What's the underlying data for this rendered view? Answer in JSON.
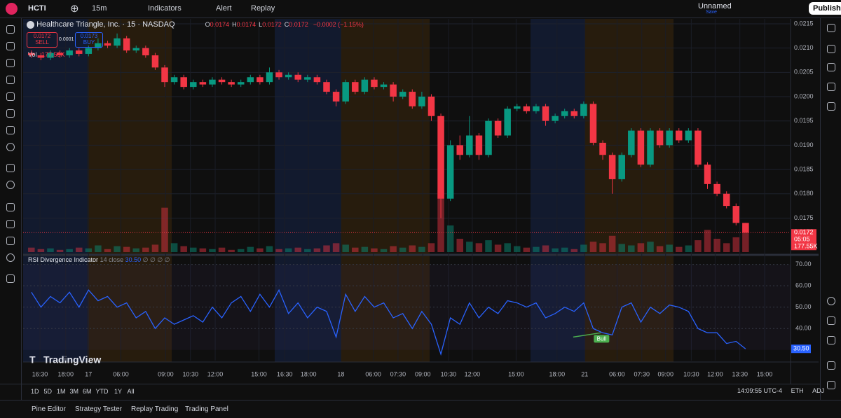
{
  "toolbar": {
    "symbol": "HCTI",
    "interval": "15m",
    "indicators": "Indicators",
    "alert": "Alert",
    "replay": "Replay",
    "layout_name": "Unnamed",
    "save": "Save",
    "publish": "Publish"
  },
  "legend": {
    "title": "Healthcare Triangle, Inc. · 15 · NASDAQ",
    "ohlc": [
      {
        "key": "O",
        "value": "0.0174"
      },
      {
        "key": "H",
        "value": "0.0174"
      },
      {
        "key": "L",
        "value": "0.0172"
      },
      {
        "key": "C",
        "value": "0.0172"
      }
    ],
    "change": "−0.0002 (−1.15%)",
    "sell_price": "0.0172",
    "sell": "SELL",
    "spread": "0.0001",
    "buy_price": "0.0173",
    "buy": "BUY",
    "vol": "Vol",
    "vol_value": "177.55K"
  },
  "chart_data": {
    "type": "candlestick",
    "up_color": "#089981",
    "down_color": "#f23645",
    "open": [
      0.0209,
      0.02085,
      0.0208,
      0.0209,
      0.02085,
      0.02095,
      0.02088,
      0.021,
      0.0211,
      0.02105,
      0.0212,
      0.02095,
      0.021,
      0.02085,
      0.0206,
      0.0203,
      0.0204,
      0.0202,
      0.0203,
      0.02025,
      0.02035,
      0.0203,
      0.02025,
      0.0203,
      0.0204,
      0.0203,
      0.0205,
      0.0204,
      0.02045,
      0.02035,
      0.0204,
      0.0203,
      0.0201,
      0.0199,
      0.0203,
      0.0201,
      0.02035,
      0.0202,
      0.02025,
      0.02,
      0.0201,
      0.0198,
      0.02,
      0.0196,
      0.0179,
      0.019,
      0.0188,
      0.0192,
      0.0188,
      0.0195,
      0.0192,
      0.01975,
      0.0198,
      0.0197,
      0.0198,
      0.0195,
      0.0196,
      0.0197,
      0.0196,
      0.01985,
      0.01905,
      0.0188,
      0.0183,
      0.0188,
      0.0193,
      0.0186,
      0.0193,
      0.019,
      0.0193,
      0.0191,
      0.0193,
      0.0186,
      0.0182,
      0.018,
      0.01775,
      0.0174
    ],
    "high": [
      0.02095,
      0.0209,
      0.02095,
      0.02095,
      0.021,
      0.021,
      0.02105,
      0.0212,
      0.02115,
      0.0213,
      0.02125,
      0.02105,
      0.02105,
      0.0209,
      0.02065,
      0.02045,
      0.02045,
      0.02035,
      0.02035,
      0.0204,
      0.0204,
      0.02035,
      0.02035,
      0.02045,
      0.02045,
      0.0206,
      0.02055,
      0.0205,
      0.0205,
      0.02045,
      0.02045,
      0.02035,
      0.02015,
      0.02035,
      0.02035,
      0.0204,
      0.0204,
      0.0203,
      0.0203,
      0.02015,
      0.02015,
      0.0201,
      0.02005,
      0.01965,
      0.0191,
      0.0192,
      0.0196,
      0.01925,
      0.01955,
      0.01955,
      0.0198,
      0.01985,
      0.01985,
      0.01985,
      0.01985,
      0.01965,
      0.01975,
      0.01975,
      0.0199,
      0.0199,
      0.0191,
      0.01885,
      0.01885,
      0.01935,
      0.01935,
      0.01935,
      0.01935,
      0.01935,
      0.01935,
      0.01935,
      0.01935,
      0.01865,
      0.01825,
      0.01805,
      0.0178,
      0.0174
    ],
    "low": [
      0.0208,
      0.02075,
      0.02075,
      0.0208,
      0.0208,
      0.02083,
      0.02083,
      0.02095,
      0.021,
      0.021,
      0.0209,
      0.0209,
      0.0208,
      0.02055,
      0.0202,
      0.02025,
      0.02015,
      0.02015,
      0.0202,
      0.0202,
      0.02025,
      0.0202,
      0.0202,
      0.02025,
      0.02025,
      0.02025,
      0.02035,
      0.02035,
      0.0203,
      0.0203,
      0.02025,
      0.02005,
      0.0198,
      0.01985,
      0.02005,
      0.02005,
      0.02015,
      0.02015,
      0.0199,
      0.01995,
      0.01975,
      0.01975,
      0.0195,
      0.0175,
      0.01785,
      0.0187,
      0.01875,
      0.0187,
      0.01875,
      0.01915,
      0.01915,
      0.0197,
      0.01965,
      0.01965,
      0.0194,
      0.01945,
      0.01955,
      0.01955,
      0.01955,
      0.019,
      0.0187,
      0.018,
      0.01825,
      0.01875,
      0.01855,
      0.01855,
      0.01895,
      0.01895,
      0.01905,
      0.01905,
      0.01855,
      0.0181,
      0.01795,
      0.0177,
      0.01735,
      0.0172
    ],
    "close": [
      0.02085,
      0.0208,
      0.0209,
      0.02085,
      0.02095,
      0.02088,
      0.021,
      0.0211,
      0.02105,
      0.0212,
      0.02095,
      0.021,
      0.02085,
      0.0206,
      0.0203,
      0.0204,
      0.0202,
      0.0203,
      0.02025,
      0.02035,
      0.0203,
      0.02025,
      0.0203,
      0.0204,
      0.0203,
      0.0205,
      0.0204,
      0.02045,
      0.02035,
      0.0204,
      0.0203,
      0.0201,
      0.0199,
      0.0203,
      0.0201,
      0.02035,
      0.0202,
      0.02025,
      0.02,
      0.0201,
      0.0198,
      0.02,
      0.0196,
      0.0179,
      0.019,
      0.0188,
      0.0192,
      0.0188,
      0.0195,
      0.0192,
      0.01975,
      0.0198,
      0.0197,
      0.0198,
      0.0195,
      0.0196,
      0.0197,
      0.0196,
      0.01985,
      0.01905,
      0.0188,
      0.0183,
      0.0188,
      0.0193,
      0.0186,
      0.0193,
      0.019,
      0.0193,
      0.0191,
      0.0193,
      0.0186,
      0.0182,
      0.018,
      0.01775,
      0.0174,
      0.0172
    ],
    "volume": [
      30000,
      20000,
      25000,
      15000,
      20000,
      30000,
      25000,
      45000,
      20000,
      40000,
      35000,
      25000,
      30000,
      50000,
      300000,
      60000,
      40000,
      30000,
      25000,
      20000,
      30000,
      15000,
      20000,
      35000,
      25000,
      40000,
      20000,
      25000,
      30000,
      20000,
      25000,
      45000,
      60000,
      50000,
      30000,
      35000,
      25000,
      20000,
      40000,
      30000,
      45000,
      35000,
      60000,
      420000,
      180000,
      90000,
      70000,
      60000,
      80000,
      50000,
      60000,
      40000,
      30000,
      35000,
      45000,
      25000,
      30000,
      20000,
      50000,
      70000,
      60000,
      110000,
      55000,
      45000,
      60000,
      70000,
      40000,
      50000,
      35000,
      45000,
      80000,
      150000,
      90000,
      60000,
      100000,
      177550
    ],
    "volume_max": 450000,
    "price_tag": "0.0172",
    "countdown": "05:05",
    "volume_tag": "177.55K",
    "ylim": [
      0.0168,
      0.0216
    ],
    "yticks": [
      0.0215,
      {
        "value": 0.021,
        "label": "0.0210"
      },
      0.0205,
      {
        "value": 0.02,
        "label": "0.0200"
      },
      0.0195,
      {
        "value": 0.019,
        "label": "0.0190"
      },
      0.0185,
      {
        "value": 0.018,
        "label": "0.0180"
      },
      0.0175
    ],
    "xlim": [
      0,
      80
    ],
    "xticks": [
      {
        "value": 1.4,
        "label": "16:30"
      },
      {
        "value": 4.1,
        "label": "18:00"
      },
      {
        "value": 6.5,
        "label": "17"
      },
      {
        "value": 9.9,
        "label": "06:00"
      },
      {
        "value": 14.6,
        "label": "09:00"
      },
      {
        "value": 17.2,
        "label": "10:30"
      },
      {
        "value": 19.8,
        "label": "12:00"
      },
      {
        "value": 24.4,
        "label": "15:00"
      },
      {
        "value": 27.1,
        "label": "16:30"
      },
      {
        "value": 29.6,
        "label": "18:00"
      },
      {
        "value": 33,
        "label": "18"
      },
      {
        "value": 36.4,
        "label": "06:00"
      },
      {
        "value": 39,
        "label": "07:30"
      },
      {
        "value": 41.6,
        "label": "09:00"
      },
      {
        "value": 44.3,
        "label": "10:30"
      },
      {
        "value": 46.8,
        "label": "12:00"
      },
      {
        "value": 51.4,
        "label": "15:00"
      },
      {
        "value": 55.7,
        "label": "18:00"
      },
      {
        "value": 58.6,
        "label": "21"
      },
      {
        "value": 62,
        "label": "06:00"
      },
      {
        "value": 64.6,
        "label": "07:30"
      },
      {
        "value": 67.1,
        "label": "09:00"
      },
      {
        "value": 69.8,
        "label": "10:30"
      },
      {
        "value": 72.3,
        "label": "12:00"
      },
      {
        "value": 74.9,
        "label": "13:30"
      },
      {
        "value": 77.5,
        "label": "15:00"
      }
    ],
    "rsi": {
      "name": "RSI Divergence Indicator",
      "params": "14 close",
      "value_label": "30.50",
      "extras": "∅ ∅ ∅ ∅",
      "color": "#2962ff",
      "values": [
        57,
        50,
        55,
        52,
        57,
        50,
        58,
        53,
        55,
        50,
        52,
        45,
        48,
        40,
        45,
        42,
        44,
        46,
        43,
        50,
        45,
        52,
        55,
        48,
        56,
        50,
        58,
        47,
        52,
        45,
        50,
        48,
        36,
        56,
        48,
        55,
        50,
        52,
        45,
        47,
        40,
        48,
        42,
        28,
        45,
        42,
        52,
        45,
        50,
        47,
        53,
        52,
        50,
        52,
        45,
        47,
        50,
        48,
        52,
        40,
        38,
        37,
        50,
        52,
        43,
        50,
        47,
        51,
        50,
        48,
        40,
        38,
        38,
        33,
        34,
        30.5
      ],
      "ylim": [
        25,
        72.5
      ],
      "yticks": [
        {
          "value": 70,
          "label": "70.00"
        },
        {
          "value": 60,
          "label": "60.00"
        },
        {
          "value": 50,
          "label": "50.00"
        },
        {
          "value": 40,
          "label": "40.00"
        }
      ],
      "divergence": {
        "label": "Bull",
        "color": "#4caf50",
        "from": [
          57.4,
          36
        ],
        "to": [
          60.3,
          38
        ]
      }
    }
  },
  "ranges": [
    "1D",
    "5D",
    "1M",
    "3M",
    "6M",
    "YTD",
    "1Y",
    "All"
  ],
  "status": {
    "time": "14:09:55 UTC-4",
    "eth": "ETH",
    "adj": "ADJ"
  },
  "brand": "TradingView",
  "tabs": [
    "Pine Editor",
    "Strategy Tester",
    "Replay Trading",
    "Trading Panel"
  ]
}
